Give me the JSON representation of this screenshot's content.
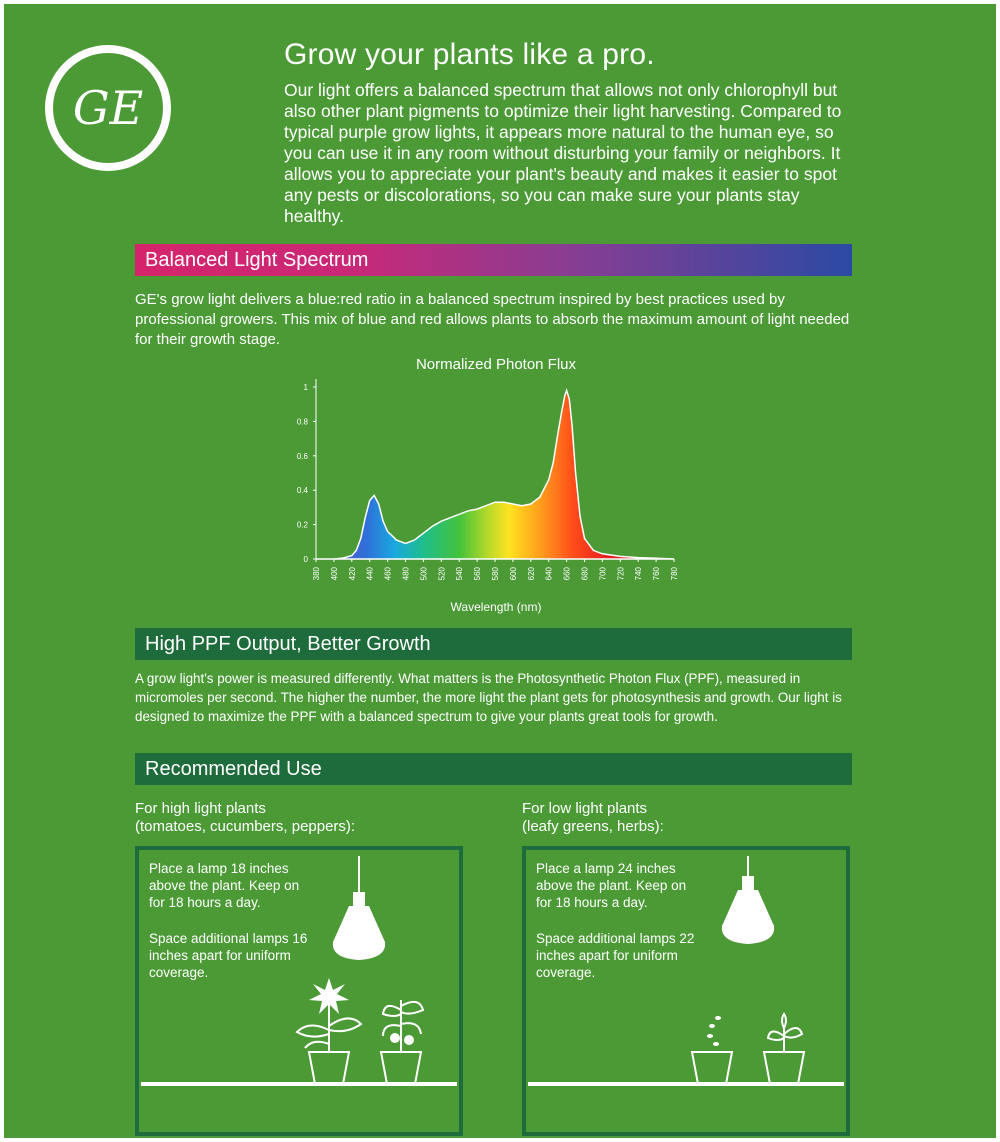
{
  "brand": {
    "logo_text": "GE"
  },
  "header": {
    "title": "Grow your plants like a pro.",
    "intro": "Our light offers a balanced spectrum that allows not only chlorophyll but also other plant pigments to optimize their light harvesting. Compared to typical purple grow lights, it appears more natural to the human eye, so you can use it in any room without disturbing your family or neighbors. It allows you to appreciate your plant's beauty and makes it easier to spot any pests or discolorations, so you can make sure your plants stay healthy."
  },
  "spectrum_section": {
    "heading": "Balanced Light Spectrum",
    "body": "GE's grow light delivers a blue:red ratio in a balanced spectrum inspired by best practices used by professional growers. This mix of blue and red allows plants to absorb the maximum amount of light needed for their growth stage."
  },
  "chart_data": {
    "type": "area",
    "title": "Normalized Photon Flux",
    "xlabel": "Wavelength (nm)",
    "ylabel": "",
    "xlim": [
      380,
      780
    ],
    "ylim": [
      0,
      1
    ],
    "xticks": [
      380,
      400,
      420,
      440,
      460,
      480,
      500,
      520,
      540,
      560,
      580,
      600,
      620,
      640,
      660,
      680,
      700,
      720,
      740,
      760,
      780
    ],
    "yticks": [
      0,
      0.2,
      0.4,
      0.6,
      0.8,
      1
    ],
    "ytick_labels": [
      "0",
      "0.2",
      "0.4",
      "0.6",
      "0.8",
      "1"
    ],
    "x": [
      380,
      400,
      410,
      420,
      425,
      430,
      435,
      440,
      445,
      450,
      455,
      460,
      470,
      480,
      490,
      500,
      510,
      520,
      530,
      540,
      550,
      560,
      570,
      580,
      590,
      600,
      610,
      620,
      630,
      640,
      645,
      650,
      655,
      658,
      660,
      663,
      666,
      670,
      675,
      680,
      690,
      700,
      720,
      740,
      760,
      780
    ],
    "values": [
      0,
      0,
      0.005,
      0.02,
      0.05,
      0.12,
      0.24,
      0.34,
      0.37,
      0.32,
      0.22,
      0.16,
      0.11,
      0.09,
      0.11,
      0.15,
      0.19,
      0.22,
      0.24,
      0.26,
      0.28,
      0.29,
      0.31,
      0.33,
      0.33,
      0.32,
      0.31,
      0.32,
      0.36,
      0.46,
      0.56,
      0.72,
      0.87,
      0.95,
      0.98,
      0.93,
      0.78,
      0.5,
      0.25,
      0.12,
      0.05,
      0.03,
      0.015,
      0.008,
      0.004,
      0
    ]
  },
  "ppf_section": {
    "heading": "High PPF Output, Better Growth",
    "body": "A grow light's power is measured differently. What matters is the Photosynthetic Photon Flux (PPF), measured in micromoles per second. The higher the number, the more light the plant gets for photosynthesis and growth. Our light is designed to maximize the PPF with a balanced spectrum to give your plants great tools for growth."
  },
  "use_section": {
    "heading": "Recommended Use",
    "high": {
      "label_line1": "For high light plants",
      "label_line2": "(tomatoes, cucumbers, peppers):",
      "instruction1": "Place a lamp 18 inches above the plant. Keep on for 18 hours a day.",
      "instruction2": "Space additional lamps 16 inches apart for uniform coverage."
    },
    "low": {
      "label_line1": "For low light plants",
      "label_line2": "(leafy greens, herbs):",
      "instruction1": "Place a lamp 24 inches above the plant. Keep on for 18 hours a day.",
      "instruction2": "Space additional lamps 22 inches apart for uniform coverage."
    }
  },
  "colors": {
    "background": "#4b9a36",
    "section_bar": "#1e6b3c",
    "spectrum_start": "#d6246b",
    "spectrum_end": "#2b4aa4"
  }
}
